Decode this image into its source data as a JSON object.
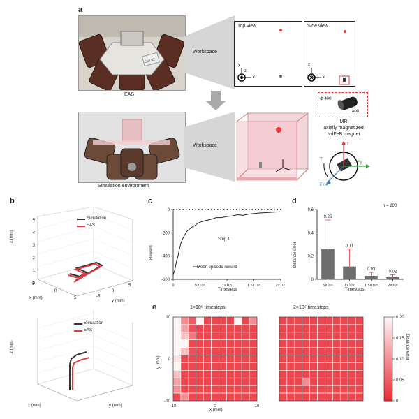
{
  "panel_a": {
    "label": "a",
    "eas_caption": "EAS",
    "workspace_top": "Workspace",
    "top_view_title": "Top view",
    "side_view_title": "Side view",
    "sim_caption": "Simulation environment",
    "workspace_bottom": "Workspace",
    "magnet_dims": [
      "Φ 400",
      "800"
    ],
    "magnet_caption": [
      "MR",
      "axially magnetized",
      "NdFeB magnet"
    ],
    "coil_label": "Coil #2",
    "force_labels": {
      "fz": "Fz",
      "fy": "Fy",
      "fx": "Fx",
      "t": "T"
    },
    "axis_labels": {
      "x": "x",
      "y": "y",
      "z": "z"
    }
  },
  "panel_b": {
    "label": "b",
    "legend": [
      "Simulation",
      "EAS"
    ],
    "xlabel": "x (mm)",
    "ylabel": "y (mm)",
    "zlabel": "z (mm)",
    "z_ticks": [
      "0",
      "1",
      "2",
      "3",
      "4",
      "5"
    ],
    "xy_ticks": [
      "-5",
      "0",
      "5"
    ],
    "colors": {
      "simulation": "#333333",
      "eas": "#e8383d"
    }
  },
  "panel_c": {
    "label": "c",
    "ylabel": "Reward",
    "xlabel": "Timesteps",
    "annotation": "Step 1",
    "legend": "Mean episode reward",
    "y_ticks": [
      "0",
      "-200",
      "-400",
      "-600"
    ],
    "x_ticks": [
      "0",
      "5×10⁵",
      "1×10⁶",
      "1.5×10⁶",
      "2×10⁶"
    ]
  },
  "panel_d": {
    "label": "d",
    "n_label": "n = 100",
    "ylabel": "Distance error",
    "xlabel": "Timesteps",
    "y_ticks": [
      "0",
      "0.2",
      "0.4",
      "0.6"
    ],
    "x_ticks": [
      "5×10⁵",
      "1×10⁶",
      "1.5×10⁶",
      "2×10⁶"
    ],
    "value_labels": [
      "0.26",
      "0.11",
      "0.03",
      "0.02"
    ]
  },
  "panel_e": {
    "label": "e",
    "left_title": "1×10⁶ timesteps",
    "right_title": "2×10⁶ timesteps",
    "ylabel": "y (mm)",
    "xlabel": "x (mm)",
    "y_ticks": [
      "10",
      "0",
      "-10"
    ],
    "x_ticks": [
      "-10",
      "0",
      "10"
    ],
    "colorbar_label": "Distance error",
    "colorbar_ticks": [
      "0.20",
      "0.15",
      "0.10",
      "0.05",
      "0"
    ]
  },
  "chart_data": [
    {
      "type": "line",
      "panel": "c",
      "xlabel": "Timesteps",
      "ylabel": "Reward",
      "xlim": [
        0,
        2000000
      ],
      "ylim": [
        -600,
        0
      ],
      "series": [
        {
          "name": "Mean episode reward",
          "x": [
            0,
            30000,
            60000,
            90000,
            120000,
            150000,
            200000,
            250000,
            300000,
            350000,
            400000,
            450000,
            500000,
            600000,
            700000,
            800000,
            900000,
            1000000,
            1100000,
            1200000,
            1300000,
            1400000,
            1500000,
            1600000,
            1700000,
            1800000,
            1900000,
            2000000
          ],
          "y": [
            -560,
            -520,
            -450,
            -400,
            -330,
            -280,
            -230,
            -190,
            -170,
            -150,
            -140,
            -120,
            -110,
            -95,
            -85,
            -70,
            -70,
            -60,
            -55,
            -45,
            -50,
            -40,
            -35,
            -30,
            -28,
            -25,
            -22,
            -20
          ]
        },
        {
          "name": "",
          "x": [
            0,
            2000000
          ],
          "y": [
            0,
            0
          ]
        }
      ]
    },
    {
      "type": "bar",
      "panel": "d",
      "categories": [
        "5×10⁵",
        "1×10⁶",
        "1.5×10⁶",
        "2×10⁶"
      ],
      "values": [
        0.26,
        0.11,
        0.03,
        0.02
      ],
      "errors": [
        0.25,
        0.15,
        0.03,
        0.02
      ],
      "ylim": [
        0,
        0.6
      ],
      "xlabel": "Timesteps",
      "ylabel": "Distance error"
    },
    {
      "type": "heatmap",
      "panel": "e",
      "title": "1×10⁶ timesteps",
      "xlim": [
        -10,
        10
      ],
      "ylim": [
        -10,
        10
      ],
      "clim": [
        0,
        0.2
      ],
      "rows_top_to_bottom": [
        [
          0.2,
          0.1,
          0.05,
          0.2,
          0.03,
          0.03,
          0.03,
          0.03,
          0.2,
          0.03,
          0.1
        ],
        [
          0.2,
          0.12,
          0.04,
          0.03,
          0.03,
          0.03,
          0.03,
          0.03,
          0.03,
          0.03,
          0.03
        ],
        [
          0.2,
          0.15,
          0.08,
          0.03,
          0.03,
          0.03,
          0.03,
          0.03,
          0.03,
          0.03,
          0.03
        ],
        [
          0.2,
          0.2,
          0.03,
          0.03,
          0.03,
          0.03,
          0.03,
          0.03,
          0.03,
          0.03,
          0.03
        ],
        [
          0.2,
          0.15,
          0.04,
          0.03,
          0.03,
          0.03,
          0.03,
          0.03,
          0.03,
          0.03,
          0.03
        ],
        [
          0.18,
          0.03,
          0.03,
          0.03,
          0.03,
          0.03,
          0.03,
          0.03,
          0.03,
          0.03,
          0.03
        ],
        [
          0.2,
          0.03,
          0.03,
          0.03,
          0.03,
          0.03,
          0.03,
          0.03,
          0.03,
          0.03,
          0.03
        ],
        [
          0.15,
          0.03,
          0.03,
          0.03,
          0.03,
          0.03,
          0.03,
          0.03,
          0.03,
          0.03,
          0.03
        ],
        [
          0.12,
          0.03,
          0.03,
          0.03,
          0.03,
          0.03,
          0.03,
          0.03,
          0.03,
          0.03,
          0.03
        ],
        [
          0.1,
          0.03,
          0.03,
          0.03,
          0.03,
          0.03,
          0.03,
          0.03,
          0.03,
          0.03,
          0.03
        ],
        [
          0.03,
          0.1,
          0.03,
          0.03,
          0.03,
          0.03,
          0.03,
          0.03,
          0.03,
          0.03,
          0.03
        ]
      ]
    },
    {
      "type": "heatmap",
      "panel": "e",
      "title": "2×10⁶ timesteps",
      "xlim": [
        -10,
        10
      ],
      "ylim": [
        -10,
        10
      ],
      "clim": [
        0,
        0.2
      ],
      "rows_top_to_bottom": [
        [
          0.03,
          0.03,
          0.03,
          0.03,
          0.03,
          0.03,
          0.03,
          0.03,
          0.03,
          0.03,
          0.03
        ],
        [
          0.03,
          0.03,
          0.03,
          0.03,
          0.03,
          0.03,
          0.03,
          0.03,
          0.03,
          0.03,
          0.03
        ],
        [
          0.03,
          0.03,
          0.03,
          0.03,
          0.03,
          0.03,
          0.03,
          0.03,
          0.03,
          0.03,
          0.03
        ],
        [
          0.03,
          0.03,
          0.03,
          0.03,
          0.03,
          0.03,
          0.03,
          0.03,
          0.03,
          0.03,
          0.03
        ],
        [
          0.03,
          0.03,
          0.03,
          0.03,
          0.03,
          0.03,
          0.03,
          0.03,
          0.03,
          0.03,
          0.03
        ],
        [
          0.03,
          0.03,
          0.03,
          0.03,
          0.03,
          0.03,
          0.03,
          0.03,
          0.03,
          0.03,
          0.03
        ],
        [
          0.03,
          0.03,
          0.03,
          0.03,
          0.03,
          0.03,
          0.03,
          0.03,
          0.03,
          0.03,
          0.03
        ],
        [
          0.03,
          0.03,
          0.03,
          0.03,
          0.03,
          0.03,
          0.03,
          0.03,
          0.03,
          0.03,
          0.03
        ],
        [
          0.03,
          0.03,
          0.03,
          0.1,
          0.03,
          0.03,
          0.03,
          0.03,
          0.03,
          0.03,
          0.03
        ],
        [
          0.03,
          0.03,
          0.03,
          0.03,
          0.03,
          0.03,
          0.03,
          0.03,
          0.03,
          0.03,
          0.03
        ],
        [
          0.03,
          0.03,
          0.03,
          0.03,
          0.03,
          0.03,
          0.03,
          0.03,
          0.03,
          0.03,
          0.03
        ]
      ]
    }
  ]
}
